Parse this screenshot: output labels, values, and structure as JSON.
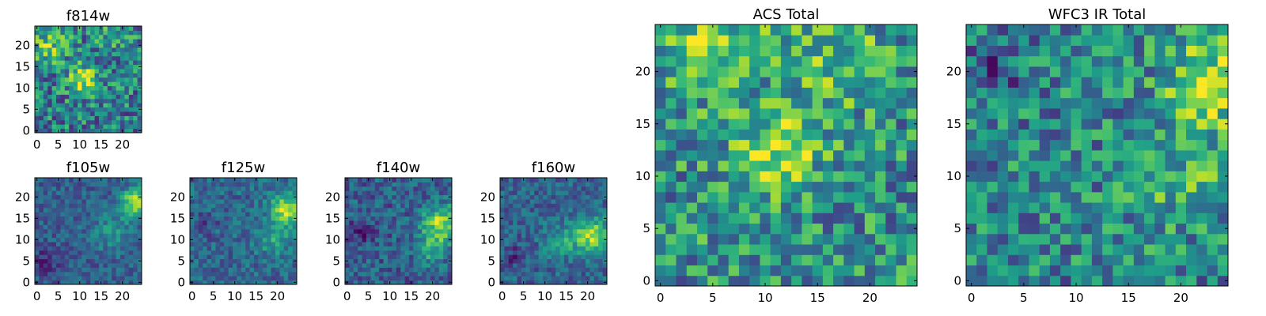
{
  "figure": {
    "colormap": "viridis",
    "background": "#ffffff"
  },
  "chart_data": [
    {
      "type": "heatmap",
      "title": "f814w",
      "grid_size": [
        25,
        25
      ],
      "xlim": [
        0,
        24
      ],
      "ylim": [
        0,
        24
      ],
      "xticks": [
        0,
        5,
        10,
        15,
        20
      ],
      "yticks": [
        0,
        5,
        10,
        15,
        20
      ],
      "pattern": {
        "base": 0.42,
        "noise": 0.3,
        "seed": 11,
        "blobs": [
          {
            "x": 11,
            "y": 12,
            "s": 2.5,
            "a": 0.45
          },
          {
            "x": 3,
            "y": 20,
            "s": 3.0,
            "a": 0.3
          },
          {
            "x": 18,
            "y": 22,
            "s": 3.0,
            "a": 0.15
          }
        ]
      }
    },
    {
      "type": "heatmap",
      "title": "f105w",
      "grid_size": [
        25,
        25
      ],
      "xlim": [
        0,
        24
      ],
      "ylim": [
        0,
        24
      ],
      "xticks": [
        0,
        5,
        10,
        15,
        20
      ],
      "yticks": [
        0,
        5,
        10,
        15,
        20
      ],
      "pattern": {
        "base": 0.3,
        "noise": 0.14,
        "seed": 22,
        "blobs": [
          {
            "x": 23,
            "y": 19,
            "s": 2.2,
            "a": 0.6
          },
          {
            "x": 18,
            "y": 12,
            "s": 3.5,
            "a": 0.2
          },
          {
            "x": 2,
            "y": 5,
            "s": 2.0,
            "a": -0.2
          }
        ]
      }
    },
    {
      "type": "heatmap",
      "title": "f125w",
      "grid_size": [
        25,
        25
      ],
      "xlim": [
        0,
        24
      ],
      "ylim": [
        0,
        24
      ],
      "xticks": [
        0,
        5,
        10,
        15,
        20
      ],
      "yticks": [
        0,
        5,
        10,
        15,
        20
      ],
      "pattern": {
        "base": 0.34,
        "noise": 0.16,
        "seed": 33,
        "blobs": [
          {
            "x": 22,
            "y": 17,
            "s": 2.5,
            "a": 0.55
          },
          {
            "x": 19,
            "y": 10,
            "s": 2.5,
            "a": 0.25
          },
          {
            "x": 3,
            "y": 14,
            "s": 2.0,
            "a": -0.15
          }
        ]
      }
    },
    {
      "type": "heatmap",
      "title": "f140w",
      "grid_size": [
        25,
        25
      ],
      "xlim": [
        0,
        24
      ],
      "ylim": [
        0,
        24
      ],
      "xticks": [
        0,
        5,
        10,
        15,
        20
      ],
      "yticks": [
        0,
        5,
        10,
        15,
        20
      ],
      "pattern": {
        "base": 0.3,
        "noise": 0.18,
        "seed": 44,
        "blobs": [
          {
            "x": 22,
            "y": 14,
            "s": 3.0,
            "a": 0.55
          },
          {
            "x": 20,
            "y": 8,
            "s": 2.5,
            "a": 0.3
          },
          {
            "x": 3,
            "y": 12,
            "s": 2.0,
            "a": -0.2
          }
        ]
      }
    },
    {
      "type": "heatmap",
      "title": "f160w",
      "grid_size": [
        25,
        25
      ],
      "xlim": [
        0,
        24
      ],
      "ylim": [
        0,
        24
      ],
      "xticks": [
        0,
        5,
        10,
        15,
        20
      ],
      "yticks": [
        0,
        5,
        10,
        15,
        20
      ],
      "pattern": {
        "base": 0.32,
        "noise": 0.16,
        "seed": 55,
        "blobs": [
          {
            "x": 21,
            "y": 11,
            "s": 3.0,
            "a": 0.55
          },
          {
            "x": 14,
            "y": 10,
            "s": 3.0,
            "a": 0.2
          },
          {
            "x": 3,
            "y": 6,
            "s": 2.0,
            "a": -0.15
          }
        ]
      }
    },
    {
      "type": "heatmap",
      "title": "ACS Total",
      "grid_size": [
        25,
        25
      ],
      "xlim": [
        0,
        24
      ],
      "ylim": [
        0,
        24
      ],
      "xticks": [
        0,
        5,
        10,
        15,
        20
      ],
      "yticks": [
        0,
        5,
        10,
        15,
        20
      ],
      "pattern": {
        "base": 0.5,
        "noise": 0.3,
        "seed": 66,
        "blobs": [
          {
            "x": 11,
            "y": 12,
            "s": 2.5,
            "a": 0.4
          },
          {
            "x": 4,
            "y": 22,
            "s": 3.0,
            "a": 0.3
          },
          {
            "x": 16,
            "y": 22,
            "s": 4.0,
            "a": 0.2
          }
        ]
      }
    },
    {
      "type": "heatmap",
      "title": "WFC3 IR Total",
      "grid_size": [
        25,
        25
      ],
      "xlim": [
        0,
        24
      ],
      "ylim": [
        0,
        24
      ],
      "xticks": [
        0,
        5,
        10,
        15,
        20
      ],
      "yticks": [
        0,
        5,
        10,
        15,
        20
      ],
      "pattern": {
        "base": 0.45,
        "noise": 0.28,
        "seed": 77,
        "blobs": [
          {
            "x": 23,
            "y": 19,
            "s": 3.0,
            "a": 0.45
          },
          {
            "x": 20,
            "y": 10,
            "s": 3.5,
            "a": 0.2
          },
          {
            "x": 2,
            "y": 20,
            "s": 2.0,
            "a": -0.25
          }
        ]
      }
    }
  ]
}
